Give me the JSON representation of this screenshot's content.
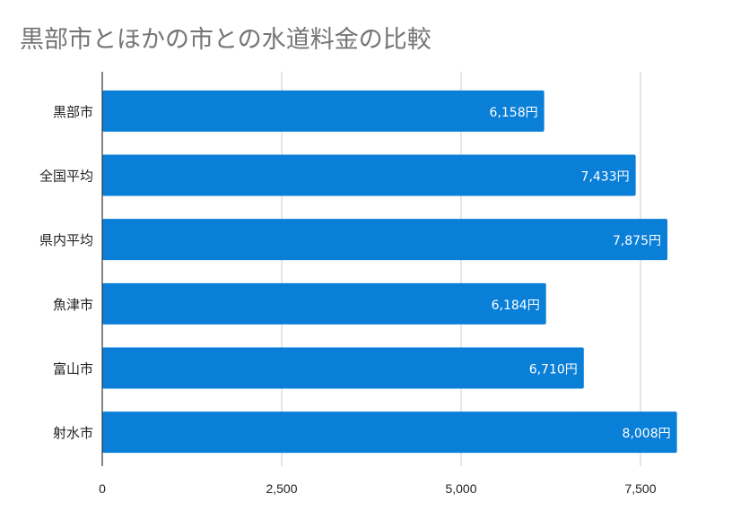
{
  "chart_data": {
    "type": "bar",
    "orientation": "horizontal",
    "title": "黒部市とほかの市との水道料金の比較",
    "categories": [
      "黒部市",
      "全国平均",
      "県内平均",
      "魚津市",
      "富山市",
      "射水市"
    ],
    "values": [
      6158,
      7433,
      7875,
      6184,
      6710,
      8008
    ],
    "data_labels": [
      "6,158円",
      "7,433円",
      "7,875円",
      "6,184円",
      "6,710円",
      "8,008円"
    ],
    "xlim": [
      0,
      8000
    ],
    "x_ticks": [
      0,
      2500,
      5000,
      7500
    ],
    "x_tick_labels": [
      "0",
      "2,500",
      "5,000",
      "7,500"
    ],
    "grid": true,
    "legend": "none",
    "bar_color": "#0a7fd8"
  }
}
